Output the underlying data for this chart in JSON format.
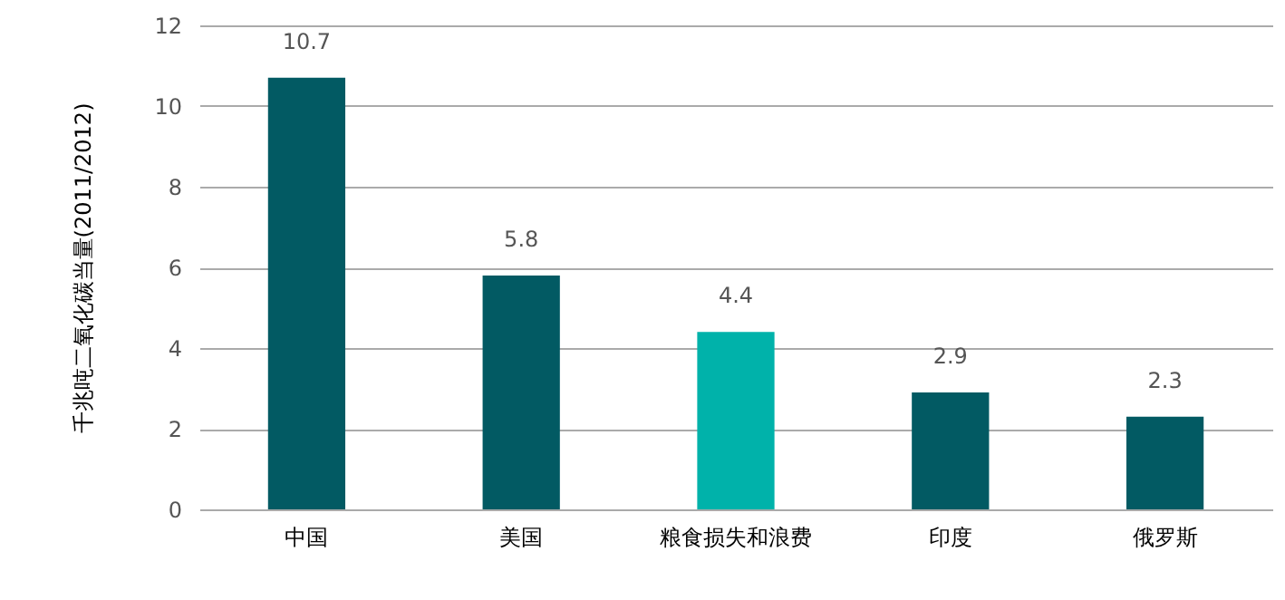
{
  "chart_data": {
    "type": "bar",
    "ylabel": "千兆吨二氧化碳当量(2011/2012)",
    "categories": [
      "中国",
      "美国",
      "粮食损失和浪费",
      "印度",
      "俄罗斯"
    ],
    "values": [
      10.7,
      5.8,
      4.4,
      2.9,
      2.3
    ],
    "colors": [
      "#025a63",
      "#025a63",
      "#00b2aa",
      "#025a63",
      "#025a63"
    ],
    "ylim": [
      0,
      12
    ],
    "yticks": [
      0,
      2,
      4,
      6,
      8,
      10,
      12
    ],
    "grid": "y",
    "data_labels": true
  }
}
